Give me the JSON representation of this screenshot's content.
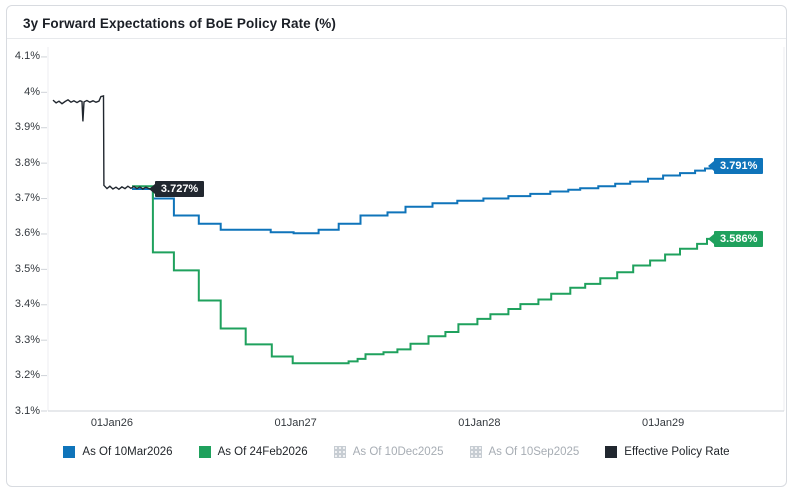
{
  "header": {
    "title": "3y Forward Expectations of BoE Policy Rate (%)"
  },
  "colors": {
    "blue": "#0f74ba",
    "green": "#1fa15d",
    "black": "#21272f",
    "axis_text": "#33383e",
    "muted_text": "#a7adb4",
    "card_border": "#d8dbe0",
    "axis_line": "#cfd3d8",
    "faint_line": "#eceef0",
    "disabled_swatch": "#c7cdd3"
  },
  "chart_data": {
    "type": "line",
    "title": "3y Forward Expectations of BoE Policy Rate (%)",
    "x_axis_note": "time, years since 01Jan2026",
    "x_domain": [
      -0.348,
      3.658
    ],
    "y_domain": [
      3.1,
      4.128
    ],
    "grid": "off",
    "legend_position": "bottom-center",
    "x_ticks": [
      {
        "t": 0,
        "label": "01Jan26"
      },
      {
        "t": 1,
        "label": "01Jan27"
      },
      {
        "t": 2,
        "label": "01Jan28"
      },
      {
        "t": 3,
        "label": "01Jan29"
      }
    ],
    "y_ticks": [
      {
        "v": 3.1,
        "label": "3.1%"
      },
      {
        "v": 3.2,
        "label": "3.2%"
      },
      {
        "v": 3.3,
        "label": "3.3%"
      },
      {
        "v": 3.4,
        "label": "3.4%"
      },
      {
        "v": 3.5,
        "label": "3.5%"
      },
      {
        "v": 3.6,
        "label": "3.6%"
      },
      {
        "v": 3.7,
        "label": "3.7%"
      },
      {
        "v": 3.8,
        "label": "3.8%"
      },
      {
        "v": 3.9,
        "label": "3.9%"
      },
      {
        "v": 4.0,
        "label": "4%"
      },
      {
        "v": 4.1,
        "label": "4.1%"
      }
    ],
    "series": [
      {
        "name": "As Of 10Mar2026",
        "color": "#0f74ba",
        "style": "step",
        "hidden": false,
        "end_label": "3.791%",
        "points": [
          [
            0.109,
            3.727
          ],
          [
            0.223,
            3.7
          ],
          [
            0.337,
            3.652
          ],
          [
            0.473,
            3.629
          ],
          [
            0.592,
            3.612
          ],
          [
            0.864,
            3.605
          ],
          [
            0.989,
            3.602
          ],
          [
            1.125,
            3.612
          ],
          [
            1.234,
            3.629
          ],
          [
            1.353,
            3.652
          ],
          [
            1.5,
            3.661
          ],
          [
            1.598,
            3.677
          ],
          [
            1.745,
            3.687
          ],
          [
            1.88,
            3.694
          ],
          [
            2.022,
            3.7
          ],
          [
            2.158,
            3.707
          ],
          [
            2.277,
            3.713
          ],
          [
            2.386,
            3.72
          ],
          [
            2.484,
            3.725
          ],
          [
            2.549,
            3.729
          ],
          [
            2.647,
            3.735
          ],
          [
            2.739,
            3.742
          ],
          [
            2.821,
            3.748
          ],
          [
            2.918,
            3.756
          ],
          [
            3.0,
            3.765
          ],
          [
            3.092,
            3.772
          ],
          [
            3.174,
            3.779
          ],
          [
            3.228,
            3.785
          ],
          [
            3.261,
            3.791
          ]
        ]
      },
      {
        "name": "As Of 24Feb2026",
        "color": "#1fa15d",
        "style": "step",
        "hidden": false,
        "end_label": "3.586%",
        "points": [
          [
            0.109,
            3.735
          ],
          [
            0.223,
            3.548
          ],
          [
            0.337,
            3.497
          ],
          [
            0.473,
            3.412
          ],
          [
            0.592,
            3.333
          ],
          [
            0.728,
            3.288
          ],
          [
            0.87,
            3.254
          ],
          [
            0.984,
            3.235
          ],
          [
            1.288,
            3.24
          ],
          [
            1.337,
            3.247
          ],
          [
            1.38,
            3.26
          ],
          [
            1.478,
            3.266
          ],
          [
            1.554,
            3.274
          ],
          [
            1.625,
            3.29
          ],
          [
            1.723,
            3.311
          ],
          [
            1.815,
            3.323
          ],
          [
            1.886,
            3.345
          ],
          [
            1.989,
            3.36
          ],
          [
            2.06,
            3.373
          ],
          [
            2.158,
            3.388
          ],
          [
            2.223,
            3.402
          ],
          [
            2.321,
            3.415
          ],
          [
            2.391,
            3.431
          ],
          [
            2.495,
            3.448
          ],
          [
            2.576,
            3.459
          ],
          [
            2.658,
            3.475
          ],
          [
            2.75,
            3.492
          ],
          [
            2.837,
            3.511
          ],
          [
            2.929,
            3.525
          ],
          [
            3.011,
            3.542
          ],
          [
            3.092,
            3.558
          ],
          [
            3.185,
            3.572
          ],
          [
            3.239,
            3.586
          ],
          [
            3.261,
            3.586
          ]
        ]
      },
      {
        "name": "As Of 10Dec2025",
        "style": "step",
        "hidden": true,
        "points": []
      },
      {
        "name": "As Of 10Sep2025",
        "style": "step",
        "hidden": true,
        "points": []
      },
      {
        "name": "Effective Policy Rate",
        "color": "#21272f",
        "style": "line",
        "hidden": false,
        "point_label": "3.727%",
        "point_label_at": [
          0.223,
          3.727
        ],
        "points": [
          [
            -0.321,
            3.978
          ],
          [
            -0.304,
            3.97
          ],
          [
            -0.288,
            3.975
          ],
          [
            -0.272,
            3.968
          ],
          [
            -0.255,
            3.974
          ],
          [
            -0.239,
            3.979
          ],
          [
            -0.223,
            3.972
          ],
          [
            -0.207,
            3.976
          ],
          [
            -0.19,
            3.971
          ],
          [
            -0.174,
            3.976
          ],
          [
            -0.163,
            3.974
          ],
          [
            -0.158,
            3.918
          ],
          [
            -0.152,
            3.973
          ],
          [
            -0.136,
            3.977
          ],
          [
            -0.12,
            3.972
          ],
          [
            -0.103,
            3.976
          ],
          [
            -0.087,
            3.972
          ],
          [
            -0.071,
            3.975
          ],
          [
            -0.06,
            3.988
          ],
          [
            -0.046,
            3.99
          ],
          [
            -0.044,
            3.737
          ],
          [
            -0.027,
            3.728
          ],
          [
            -0.011,
            3.735
          ],
          [
            0.005,
            3.727
          ],
          [
            0.022,
            3.732
          ],
          [
            0.038,
            3.726
          ],
          [
            0.054,
            3.733
          ],
          [
            0.071,
            3.728
          ],
          [
            0.087,
            3.735
          ],
          [
            0.103,
            3.729
          ],
          [
            0.12,
            3.734
          ],
          [
            0.136,
            3.728
          ],
          [
            0.152,
            3.733
          ],
          [
            0.168,
            3.727
          ],
          [
            0.185,
            3.732
          ],
          [
            0.201,
            3.728
          ],
          [
            0.212,
            3.727
          ]
        ]
      }
    ],
    "legend": [
      {
        "label": "As Of 10Mar2026",
        "color": "#0f74ba",
        "active": true
      },
      {
        "label": "As Of 24Feb2026",
        "color": "#1fa15d",
        "active": true
      },
      {
        "label": "As Of 10Dec2025",
        "color": "#c7cdd3",
        "active": false
      },
      {
        "label": "As Of 10Sep2025",
        "color": "#c7cdd3",
        "active": false
      },
      {
        "label": "Effective Policy Rate",
        "color": "#21272f",
        "active": true
      }
    ]
  }
}
